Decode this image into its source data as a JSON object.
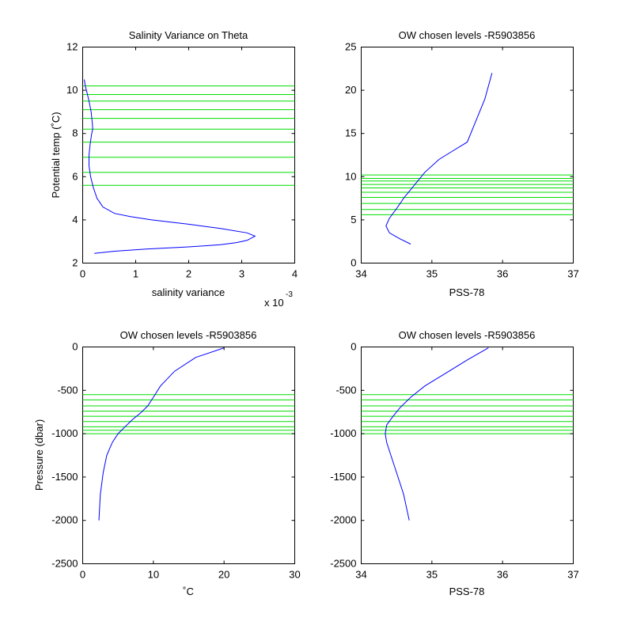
{
  "chart_data": [
    {
      "type": "line",
      "title": "Salinity Variance on Theta",
      "xlabel": "salinity variance",
      "ylabel": "Potential temp (˚C)",
      "x_multiplier_label": "x 10",
      "x_multiplier_exponent": "-3",
      "xlim": [
        0,
        4
      ],
      "ylim": [
        2,
        12
      ],
      "xticks": [
        0,
        1,
        2,
        3,
        4
      ],
      "yticks": [
        2,
        4,
        6,
        8,
        10,
        12
      ],
      "chosen_levels": [
        5.6,
        6.2,
        6.9,
        7.6,
        8.2,
        8.7,
        9.1,
        9.5,
        9.8,
        10.2
      ],
      "series": [
        {
          "x": [
            0.22,
            0.6,
            1.2,
            2.0,
            2.6,
            2.9,
            3.1,
            3.25,
            3.1,
            2.6,
            2.0,
            1.3,
            0.9,
            0.6,
            0.38,
            0.27,
            0.2,
            0.15,
            0.12,
            0.12,
            0.14,
            0.17,
            0.19,
            0.18,
            0.16,
            0.12,
            0.08,
            0.05,
            0.03
          ],
          "y": [
            2.45,
            2.55,
            2.65,
            2.75,
            2.85,
            2.95,
            3.05,
            3.25,
            3.4,
            3.6,
            3.8,
            4.0,
            4.15,
            4.3,
            4.6,
            5.0,
            5.5,
            6.0,
            6.5,
            7.0,
            7.5,
            8.0,
            8.2,
            8.5,
            9.0,
            9.5,
            9.9,
            10.2,
            10.5
          ]
        }
      ]
    },
    {
      "type": "line",
      "title": "OW chosen levels -R5903856",
      "xlabel": "PSS-78",
      "ylabel": "",
      "xlim": [
        34,
        37
      ],
      "ylim": [
        0,
        25
      ],
      "xticks": [
        34,
        35,
        36,
        37
      ],
      "yticks": [
        0,
        5,
        10,
        15,
        20,
        25
      ],
      "chosen_levels": [
        5.6,
        6.2,
        6.9,
        7.6,
        8.2,
        8.7,
        9.1,
        9.5,
        9.8,
        10.2
      ],
      "series": [
        {
          "x": [
            34.7,
            34.55,
            34.4,
            34.35,
            34.4,
            34.5,
            34.6,
            34.75,
            34.9,
            35.1,
            35.3,
            35.5,
            35.6,
            35.75,
            35.85
          ],
          "y": [
            2.2,
            2.8,
            3.5,
            4.3,
            5.2,
            6.3,
            7.5,
            9.0,
            10.5,
            12.0,
            13.0,
            14.0,
            16.0,
            19.0,
            22.0
          ]
        }
      ]
    },
    {
      "type": "line",
      "title": "OW chosen levels -R5903856",
      "xlabel": "˚C",
      "ylabel": "Pressure (dbar)",
      "xlim": [
        0,
        30
      ],
      "ylim": [
        -2500,
        0
      ],
      "xticks": [
        0,
        10,
        20,
        30
      ],
      "yticks": [
        -2500,
        -2000,
        -1500,
        -1000,
        -500,
        0
      ],
      "chosen_levels": [
        -550,
        -610,
        -680,
        -740,
        -800,
        -860,
        -920,
        -960,
        -1000
      ],
      "series": [
        {
          "x": [
            2.3,
            2.5,
            2.9,
            3.4,
            4.2,
            5.0,
            6.0,
            7.0,
            8.2,
            9.2,
            10.0,
            11.0,
            13.0,
            16.0,
            20.0
          ],
          "y": [
            -2000,
            -1700,
            -1450,
            -1250,
            -1100,
            -1000,
            -920,
            -840,
            -760,
            -680,
            -580,
            -450,
            -280,
            -120,
            -10
          ]
        }
      ]
    },
    {
      "type": "line",
      "title": "OW chosen levels -R5903856",
      "xlabel": "PSS-78",
      "ylabel": "",
      "xlim": [
        34,
        37
      ],
      "ylim": [
        -2500,
        0
      ],
      "xticks": [
        34,
        35,
        36,
        37
      ],
      "yticks": [
        -2500,
        -2000,
        -1500,
        -1000,
        -500,
        0
      ],
      "chosen_levels": [
        -550,
        -610,
        -680,
        -740,
        -800,
        -860,
        -920,
        -960,
        -1000
      ],
      "series": [
        {
          "x": [
            34.68,
            34.6,
            34.5,
            34.42,
            34.36,
            34.34,
            34.36,
            34.45,
            34.55,
            34.7,
            34.9,
            35.2,
            35.5,
            35.8
          ],
          "y": [
            -2000,
            -1700,
            -1450,
            -1250,
            -1100,
            -1000,
            -900,
            -800,
            -700,
            -580,
            -450,
            -300,
            -150,
            -10
          ]
        }
      ]
    }
  ]
}
